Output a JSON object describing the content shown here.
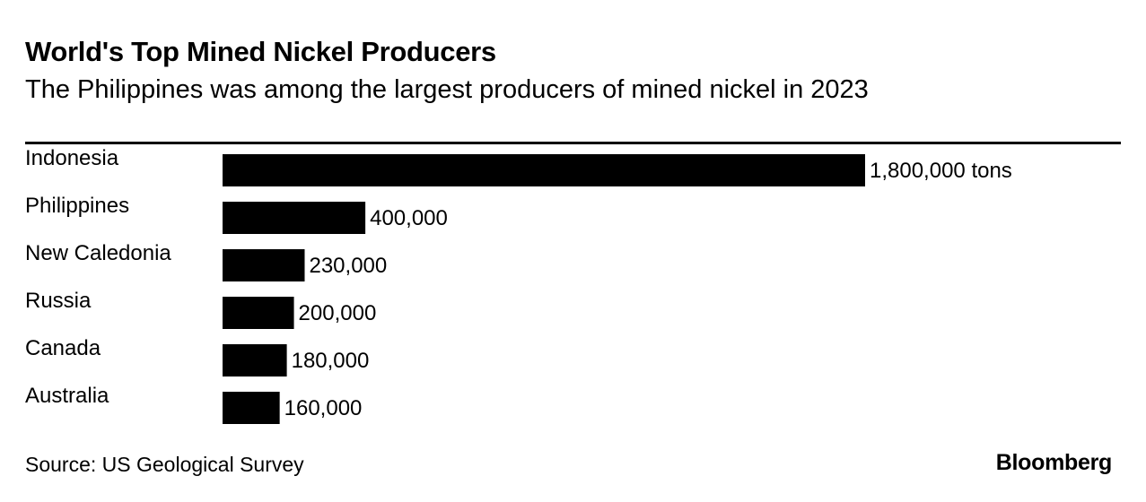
{
  "title": "World's Top Mined Nickel Producers",
  "subtitle": "The Philippines was among the largest producers of mined nickel in 2023",
  "source": "Source: US Geological Survey",
  "brand": "Bloomberg",
  "colors": {
    "bar": "#000000",
    "text": "#000000",
    "background": "#ffffff"
  },
  "chart_data": {
    "type": "bar",
    "orientation": "horizontal",
    "categories": [
      "Indonesia",
      "Philippines",
      "New Caledonia",
      "Russia",
      "Canada",
      "Australia"
    ],
    "values": [
      1800000,
      400000,
      230000,
      200000,
      180000,
      160000
    ],
    "value_labels": [
      "1,800,000 tons",
      "400,000",
      "230,000",
      "200,000",
      "180,000",
      "160,000"
    ],
    "unit": "tons",
    "title": "World's Top Mined Nickel Producers",
    "subtitle": "The Philippines was among the largest producers of mined nickel in 2023",
    "xlim": [
      0,
      1800000
    ],
    "grid": false,
    "legend": "none"
  }
}
